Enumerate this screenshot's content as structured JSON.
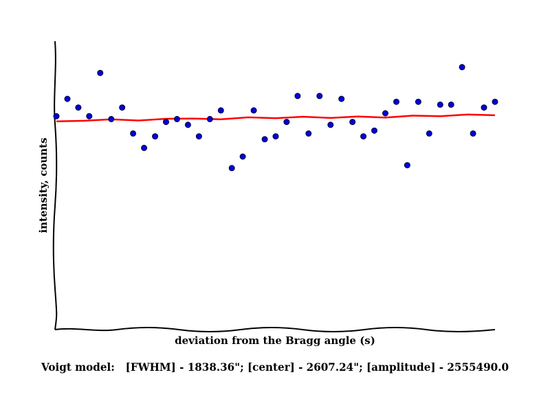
{
  "chart_data": {
    "type": "scatter",
    "xlabel": "deviation from the Bragg angle (s)",
    "ylabel": "intensity, counts",
    "caption": "Voigt model:   [FWHM] - 1838.36\"; [center] - 2607.24\"; [amplitude] - 2555490.0",
    "ticks_shown": false,
    "grid": false,
    "legend": "none",
    "xlim": [
      0,
      40
    ],
    "ylim": [
      0,
      100
    ],
    "series": [
      {
        "kind": "points",
        "color": "#0000dd",
        "x": [
          0,
          1,
          2,
          3,
          4,
          5,
          6,
          7,
          8,
          9,
          10,
          11,
          12,
          13,
          14,
          15,
          16,
          17,
          18,
          19,
          20,
          21,
          22,
          23,
          24,
          25,
          26,
          27,
          28,
          29,
          30,
          31,
          32,
          33,
          34,
          35,
          36,
          37,
          38,
          39,
          40
        ],
        "y": [
          74,
          80,
          77,
          74,
          89,
          73,
          77,
          68,
          63,
          67,
          72,
          73,
          71,
          67,
          73,
          76,
          56,
          60,
          76,
          66,
          67,
          72,
          81,
          68,
          81,
          71,
          80,
          72,
          67,
          69,
          75,
          79,
          57,
          79,
          68,
          78,
          78,
          91,
          68,
          77,
          79
        ]
      },
      {
        "kind": "fit-curve",
        "color": "#ff0000",
        "x": [
          0,
          2.5,
          5,
          7.5,
          10,
          12.5,
          15,
          17.5,
          20,
          22.5,
          25,
          27.5,
          30,
          32.5,
          35,
          37.5,
          40
        ],
        "y": [
          72.2,
          72.4,
          72.9,
          72.5,
          73.1,
          73.2,
          72.9,
          73.6,
          73.3,
          73.8,
          73.4,
          73.9,
          73.5,
          74.2,
          74.0,
          74.6,
          74.3
        ]
      }
    ]
  }
}
